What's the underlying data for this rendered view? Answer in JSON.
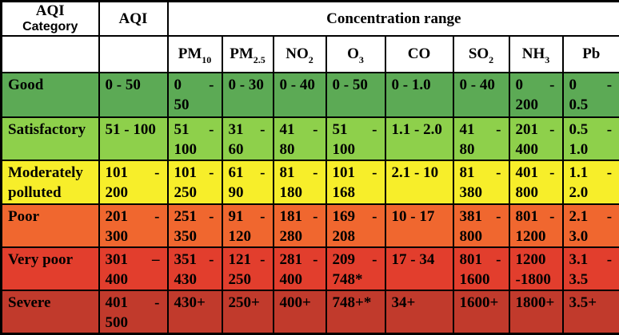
{
  "table": {
    "header": {
      "category_line1": "AQI",
      "category_line2": "Category",
      "aqi": "AQI",
      "concentration": "Concentration range"
    },
    "pollutants": [
      {
        "base": "PM",
        "sub": "10"
      },
      {
        "base": "PM",
        "sub": "2.5"
      },
      {
        "base": "NO",
        "sub": "2"
      },
      {
        "base": "O",
        "sub": "3"
      },
      {
        "base": "CO",
        "sub": ""
      },
      {
        "base": "SO",
        "sub": "2"
      },
      {
        "base": "NH",
        "sub": "3"
      },
      {
        "base": "Pb",
        "sub": ""
      }
    ],
    "rows": [
      {
        "category": "Good",
        "color": "#5caa55",
        "aqi": "0 - 50",
        "values": [
          "0 -\n50",
          "0 - 30",
          "0 - 40",
          "0 - 50",
          "0 - 1.0",
          "0 - 40",
          "0 -\n200",
          "0 -\n0.5"
        ]
      },
      {
        "category": "Satisfactory",
        "color": "#8ed04b",
        "aqi": "51 - 100",
        "values": [
          "51 -\n100",
          "31 -\n60",
          "41 -\n80",
          "51 -\n100",
          "1.1 - 2.0",
          "41 -\n80",
          "201 -\n400",
          "0.5 -\n1.0"
        ]
      },
      {
        "category": "Moderately\npolluted",
        "color": "#f7ee2a",
        "aqi": "101 -\n200",
        "values": [
          "101 -\n250",
          "61 -\n90",
          "81 -\n180",
          "101 -\n168",
          "2.1 - 10",
          "81 -\n380",
          "401 -\n800",
          "1.1 -\n2.0"
        ]
      },
      {
        "category": "Poor",
        "color": "#f0672f",
        "aqi": "201 -\n300",
        "values": [
          "251 -\n350",
          "91 -\n120",
          "181 -\n280",
          "169 -\n208",
          "10 - 17",
          "381 -\n800",
          "801 -\n1200",
          "2.1 -\n3.0"
        ]
      },
      {
        "category": "Very poor",
        "color": "#e23e2d",
        "aqi": "301 –\n400",
        "values": [
          "351 -\n430",
          "121 -\n250",
          "281 -\n400",
          "209 -\n748*",
          "17 - 34",
          "801 -\n1600",
          "1200\n-1800",
          "3.1 -\n3.5"
        ]
      },
      {
        "category": "Severe",
        "color": "#c13a2c",
        "aqi": "401 -\n500",
        "values": [
          "430+",
          "250+",
          "400+",
          "748+*",
          "34+",
          "1600+",
          "1800+",
          "3.5+"
        ]
      }
    ]
  }
}
